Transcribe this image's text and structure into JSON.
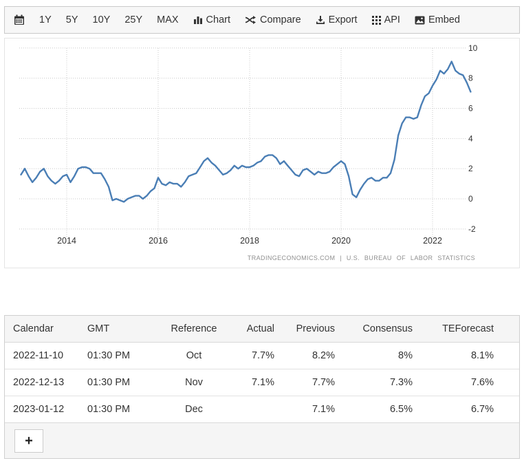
{
  "colors": {
    "line": "#4a7eb5",
    "grid": "#c8c8c8",
    "axis_text": "#333333",
    "toolbar_bg": "#f7f7f7",
    "attribution_text": "#8f8f8f"
  },
  "toolbar": {
    "calendar_icon": "calendar-icon",
    "ranges": [
      {
        "label": "1Y"
      },
      {
        "label": "5Y"
      },
      {
        "label": "10Y"
      },
      {
        "label": "25Y"
      },
      {
        "label": "MAX"
      }
    ],
    "actions": [
      {
        "label": "Chart",
        "icon": "bar-chart-icon"
      },
      {
        "label": "Compare",
        "icon": "shuffle-icon"
      },
      {
        "label": "Export",
        "icon": "download-icon"
      },
      {
        "label": "API",
        "icon": "grid-icon"
      },
      {
        "label": "Embed",
        "icon": "image-icon"
      }
    ]
  },
  "chart": {
    "attribution": "TRADINGECONOMICS.COM | U.S. BUREAU OF LABOR STATISTICS"
  },
  "chart_data": {
    "type": "line",
    "frequency": "monthly",
    "x_start_year": 2013,
    "x_tick_labels": [
      "2014",
      "2016",
      "2018",
      "2020",
      "2022"
    ],
    "x_tick_years": [
      2014,
      2016,
      2018,
      2020,
      2022
    ],
    "y_ticks": [
      10,
      8,
      6,
      4,
      2,
      0,
      -2
    ],
    "ylim": [
      -2,
      10
    ],
    "grid": "dotted",
    "legend": "none",
    "values": [
      1.6,
      2.0,
      1.5,
      1.1,
      1.4,
      1.8,
      2.0,
      1.5,
      1.2,
      1.0,
      1.2,
      1.5,
      1.6,
      1.1,
      1.5,
      2.0,
      2.1,
      2.1,
      2.0,
      1.7,
      1.7,
      1.7,
      1.3,
      0.8,
      -0.1,
      0.0,
      -0.1,
      -0.2,
      0.0,
      0.1,
      0.2,
      0.2,
      0.0,
      0.2,
      0.5,
      0.7,
      1.4,
      1.0,
      0.9,
      1.1,
      1.0,
      1.0,
      0.8,
      1.1,
      1.5,
      1.6,
      1.7,
      2.1,
      2.5,
      2.7,
      2.4,
      2.2,
      1.9,
      1.6,
      1.7,
      1.9,
      2.2,
      2.0,
      2.2,
      2.1,
      2.1,
      2.2,
      2.4,
      2.5,
      2.8,
      2.9,
      2.9,
      2.7,
      2.3,
      2.5,
      2.2,
      1.9,
      1.6,
      1.5,
      1.9,
      2.0,
      1.8,
      1.6,
      1.8,
      1.7,
      1.7,
      1.8,
      2.1,
      2.3,
      2.5,
      2.3,
      1.5,
      0.3,
      0.1,
      0.6,
      1.0,
      1.3,
      1.4,
      1.2,
      1.2,
      1.4,
      1.4,
      1.7,
      2.6,
      4.2,
      5.0,
      5.4,
      5.4,
      5.3,
      5.4,
      6.2,
      6.8,
      7.0,
      7.5,
      7.9,
      8.5,
      8.3,
      8.6,
      9.1,
      8.5,
      8.3,
      8.2,
      7.7,
      7.1
    ]
  },
  "table": {
    "headers": [
      "Calendar",
      "GMT",
      "Reference",
      "Actual",
      "Previous",
      "Consensus",
      "TEForecast"
    ],
    "rows": [
      [
        "2022-11-10",
        "01:30 PM",
        "Oct",
        "7.7%",
        "8.2%",
        "8%",
        "8.1%"
      ],
      [
        "2022-12-13",
        "01:30 PM",
        "Nov",
        "7.1%",
        "7.7%",
        "7.3%",
        "7.6%"
      ],
      [
        "2023-01-12",
        "01:30 PM",
        "Dec",
        "",
        "7.1%",
        "6.5%",
        "6.7%"
      ]
    ]
  },
  "footer": {
    "add_label": "+"
  }
}
